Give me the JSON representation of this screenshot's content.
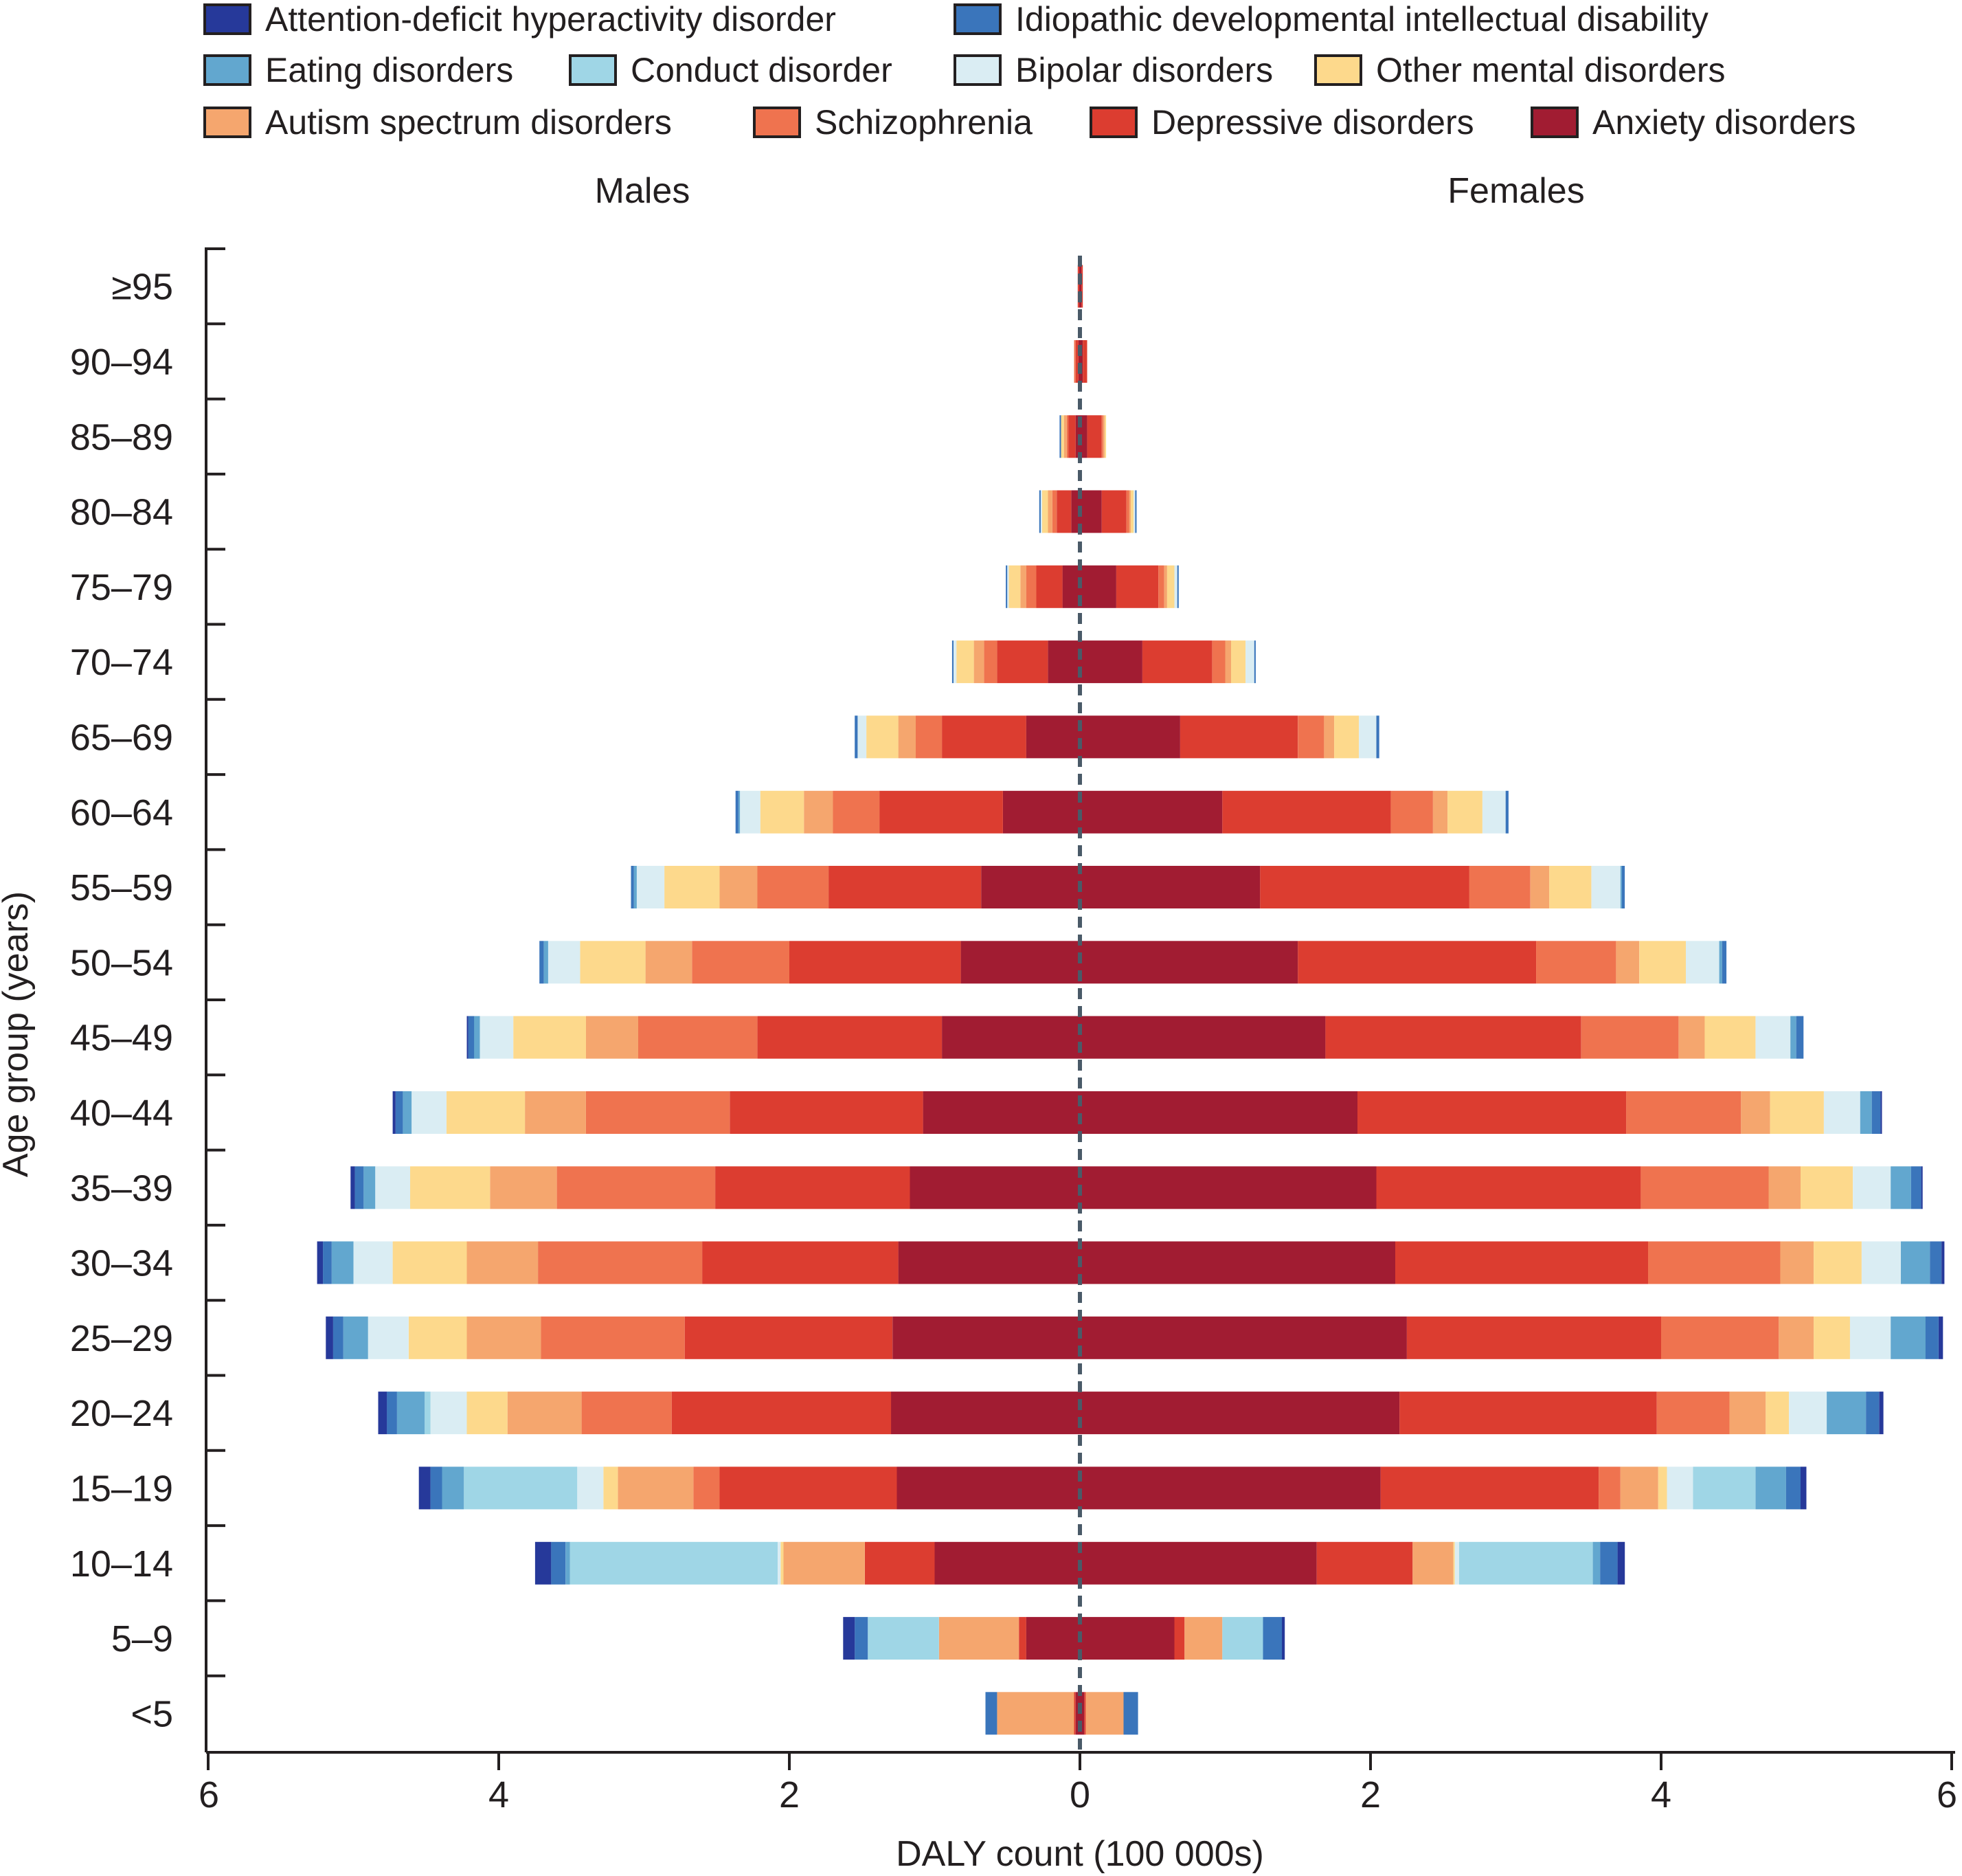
{
  "chart_data": {
    "type": "bar",
    "orientation": "horizontal",
    "layout": "population-pyramid",
    "xlabel": "DALY count (100 000s)",
    "ylabel": "Age group (years)",
    "panel_labels": {
      "left": "Males",
      "right": "Females"
    },
    "x_ticks": [
      {
        "value": -6,
        "label": "6"
      },
      {
        "value": -4,
        "label": "4"
      },
      {
        "value": -2,
        "label": "2"
      },
      {
        "value": 0,
        "label": "0"
      },
      {
        "value": 2,
        "label": "2"
      },
      {
        "value": 4,
        "label": "4"
      },
      {
        "value": 6,
        "label": "6"
      }
    ],
    "xlim": [
      -6,
      6
    ],
    "categories": [
      "≥95",
      "90–94",
      "85–89",
      "80–84",
      "75–79",
      "70–74",
      "65–69",
      "60–64",
      "55–59",
      "50–54",
      "45–49",
      "40–44",
      "35–39",
      "30–34",
      "25–29",
      "20–24",
      "15–19",
      "10–14",
      "5–9",
      "<5"
    ],
    "series": [
      {
        "name": "Anxiety disorders",
        "color": "#a11c32",
        "males": [
          0.005,
          0.01,
          0.03,
          0.06,
          0.12,
          0.22,
          0.37,
          0.53,
          0.68,
          0.82,
          0.95,
          1.08,
          1.17,
          1.25,
          1.29,
          1.3,
          1.26,
          1.0,
          0.37,
          0.03
        ],
        "females": [
          0.01,
          0.02,
          0.05,
          0.15,
          0.25,
          0.43,
          0.69,
          0.98,
          1.24,
          1.5,
          1.69,
          1.91,
          2.04,
          2.17,
          2.25,
          2.2,
          2.07,
          1.63,
          0.65,
          0.03
        ]
      },
      {
        "name": "Depressive disorders",
        "color": "#dc3d30",
        "males": [
          0.01,
          0.02,
          0.05,
          0.1,
          0.18,
          0.35,
          0.58,
          0.85,
          1.05,
          1.18,
          1.27,
          1.33,
          1.34,
          1.35,
          1.43,
          1.51,
          1.22,
          0.48,
          0.05,
          0.01
        ],
        "females": [
          0.01,
          0.03,
          0.1,
          0.17,
          0.29,
          0.48,
          0.81,
          1.16,
          1.44,
          1.64,
          1.76,
          1.85,
          1.82,
          1.74,
          1.75,
          1.77,
          1.5,
          0.66,
          0.07,
          0.01
        ]
      },
      {
        "name": "Schizophrenia",
        "color": "#ef734f",
        "males": [
          0.0,
          0.01,
          0.01,
          0.03,
          0.07,
          0.09,
          0.18,
          0.32,
          0.49,
          0.67,
          0.82,
          0.99,
          1.09,
          1.13,
          0.99,
          0.62,
          0.18,
          0.0,
          0.0,
          0.0
        ],
        "females": [
          0.0,
          0.0,
          0.01,
          0.02,
          0.04,
          0.09,
          0.18,
          0.29,
          0.42,
          0.55,
          0.67,
          0.79,
          0.88,
          0.91,
          0.81,
          0.5,
          0.15,
          0.0,
          0.0,
          0.0
        ]
      },
      {
        "name": "Autism spectrum disorders",
        "color": "#f5a66e",
        "males": [
          0.0,
          0.0,
          0.02,
          0.03,
          0.04,
          0.07,
          0.12,
          0.2,
          0.26,
          0.32,
          0.36,
          0.42,
          0.46,
          0.49,
          0.51,
          0.51,
          0.52,
          0.56,
          0.55,
          0.53
        ],
        "females": [
          0.0,
          0.0,
          0.01,
          0.01,
          0.02,
          0.04,
          0.07,
          0.1,
          0.13,
          0.16,
          0.18,
          0.2,
          0.22,
          0.23,
          0.24,
          0.25,
          0.26,
          0.28,
          0.26,
          0.26
        ]
      },
      {
        "name": "Other mental disorders",
        "color": "#fdd98c",
        "males": [
          0.0,
          0.0,
          0.02,
          0.04,
          0.08,
          0.12,
          0.22,
          0.3,
          0.38,
          0.45,
          0.5,
          0.54,
          0.55,
          0.51,
          0.4,
          0.28,
          0.1,
          0.02,
          0.0,
          0.0
        ],
        "females": [
          0.0,
          0.0,
          0.01,
          0.02,
          0.05,
          0.1,
          0.17,
          0.24,
          0.29,
          0.32,
          0.35,
          0.37,
          0.36,
          0.33,
          0.25,
          0.16,
          0.06,
          0.01,
          0.0,
          0.0
        ]
      },
      {
        "name": "Bipolar disorders",
        "color": "#daedf3",
        "males": [
          0.0,
          0.0,
          0.0,
          0.01,
          0.01,
          0.02,
          0.06,
          0.14,
          0.19,
          0.22,
          0.23,
          0.24,
          0.24,
          0.27,
          0.28,
          0.25,
          0.18,
          0.02,
          0.0,
          0.0
        ],
        "females": [
          0.0,
          0.0,
          0.0,
          0.01,
          0.02,
          0.06,
          0.12,
          0.16,
          0.2,
          0.23,
          0.24,
          0.25,
          0.26,
          0.27,
          0.28,
          0.26,
          0.18,
          0.03,
          0.0,
          0.0
        ]
      },
      {
        "name": "Conduct disorder",
        "color": "#9fd6e6",
        "males": [
          0.0,
          0.0,
          0.0,
          0.0,
          0.0,
          0.0,
          0.0,
          0.0,
          0.0,
          0.0,
          0.0,
          0.0,
          0.0,
          0.0,
          0.0,
          0.04,
          0.78,
          1.43,
          0.49,
          0.0
        ],
        "females": [
          0.0,
          0.0,
          0.0,
          0.0,
          0.0,
          0.0,
          0.0,
          0.0,
          0.0,
          0.0,
          0.0,
          0.0,
          0.0,
          0.0,
          0.0,
          0.0,
          0.43,
          0.92,
          0.28,
          0.0
        ]
      },
      {
        "name": "Eating disorders",
        "color": "#62a7cf",
        "males": [
          0.0,
          0.0,
          0.0,
          0.0,
          0.0,
          0.0,
          0.0,
          0.01,
          0.02,
          0.03,
          0.04,
          0.06,
          0.08,
          0.15,
          0.17,
          0.19,
          0.15,
          0.03,
          0.0,
          0.0
        ],
        "females": [
          0.0,
          0.0,
          0.0,
          0.0,
          0.0,
          0.0,
          0.0,
          0.0,
          0.01,
          0.02,
          0.04,
          0.08,
          0.14,
          0.2,
          0.24,
          0.27,
          0.21,
          0.05,
          0.0,
          0.0
        ]
      },
      {
        "name": "Idiopathic developmental intellectual disability",
        "color": "#3a75bb",
        "males": [
          0.0,
          0.0,
          0.01,
          0.01,
          0.01,
          0.01,
          0.02,
          0.02,
          0.02,
          0.03,
          0.04,
          0.05,
          0.06,
          0.06,
          0.07,
          0.07,
          0.08,
          0.1,
          0.09,
          0.08
        ],
        "females": [
          0.0,
          0.0,
          0.0,
          0.01,
          0.01,
          0.01,
          0.02,
          0.02,
          0.02,
          0.03,
          0.05,
          0.06,
          0.07,
          0.08,
          0.09,
          0.09,
          0.1,
          0.12,
          0.13,
          0.1
        ]
      },
      {
        "name": "Attention-deficit hyperactivity disorder",
        "color": "#26399a",
        "males": [
          0.0,
          0.0,
          0.0,
          0.0,
          0.0,
          0.0,
          0.0,
          0.0,
          0.0,
          0.0,
          0.01,
          0.02,
          0.03,
          0.04,
          0.05,
          0.06,
          0.08,
          0.11,
          0.08,
          0.0
        ],
        "females": [
          0.0,
          0.0,
          0.0,
          0.0,
          0.0,
          0.0,
          0.0,
          0.0,
          0.0,
          0.0,
          0.0,
          0.01,
          0.01,
          0.02,
          0.03,
          0.03,
          0.04,
          0.05,
          0.02,
          0.0
        ]
      }
    ],
    "legend": {
      "placement": "top",
      "rows": [
        [
          "Attention-deficit hyperactivity disorder",
          "Idiopathic developmental intellectual disability"
        ],
        [
          "Eating disorders",
          "Conduct disorder",
          "Bipolar disorders",
          "Other mental disorders"
        ],
        [
          "Autism spectrum disorders",
          "Schizophrenia",
          "Depressive disorders",
          "Anxiety disorders"
        ]
      ]
    }
  }
}
